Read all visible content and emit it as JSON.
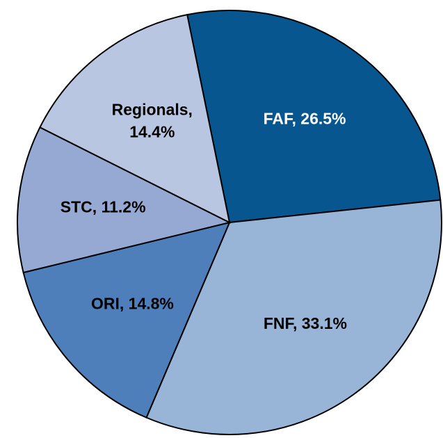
{
  "chart_data": {
    "type": "pie",
    "values": [
      26.5,
      33.1,
      14.8,
      11.2,
      14.4
    ],
    "value_labels": [
      "FAF, 26.5%",
      "FNF, 33.1%",
      "ORI, 14.8%",
      "STC, 11.2%",
      "Regionals, 14.4%"
    ],
    "colors": [
      "#07568f",
      "#98b5d8",
      "#4f7fbb",
      "#96a9d2",
      "#b9c6e1"
    ],
    "label_colors": [
      "#ffffff",
      "#000000",
      "#000000",
      "#000000",
      "#000000"
    ],
    "start_angle": -11.5
  }
}
